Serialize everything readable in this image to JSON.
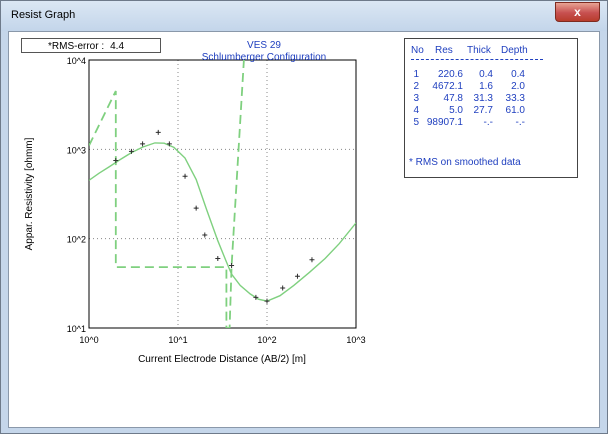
{
  "window": {
    "title": "Resist Graph",
    "close_glyph": "x"
  },
  "rms": {
    "label": "*RMS-error :",
    "value": "4.4"
  },
  "graph": {
    "title_line1": "VES 29",
    "title_line2": "Schlumberger Configuration"
  },
  "table": {
    "headers": [
      "No",
      "Res",
      "Thick",
      "Depth"
    ],
    "rows": [
      {
        "no": "1",
        "res": "220.6",
        "thick": "0.4",
        "depth": "0.4"
      },
      {
        "no": "2",
        "res": "4672.1",
        "thick": "1.6",
        "depth": "2.0"
      },
      {
        "no": "3",
        "res": "47.8",
        "thick": "31.3",
        "depth": "33.3"
      },
      {
        "no": "4",
        "res": "5.0",
        "thick": "27.7",
        "depth": "61.0"
      },
      {
        "no": "5",
        "res": "98907.1",
        "thick": "-.-",
        "depth": "-.-"
      }
    ],
    "note": "* RMS on smoothed data"
  },
  "colors": {
    "curve": "#7fd07f",
    "text_blue": "#1f3fbf",
    "observed": "#333333"
  },
  "chart_data": {
    "type": "line",
    "x_scale": "log",
    "y_scale": "log",
    "xlim": [
      1,
      1000
    ],
    "ylim": [
      10,
      10000
    ],
    "xlabel": "Current Electrode Distance (AB/2) [m]",
    "ylabel": "Appar. Resistivity [ohmm]",
    "x_ticks": [
      {
        "value": 1,
        "label": "10^0"
      },
      {
        "value": 10,
        "label": "10^1"
      },
      {
        "value": 100,
        "label": "10^2"
      },
      {
        "value": 1000,
        "label": "10^3"
      }
    ],
    "y_ticks": [
      {
        "value": 10,
        "label": "10^1"
      },
      {
        "value": 100,
        "label": "10^2"
      },
      {
        "value": 1000,
        "label": "10^3"
      },
      {
        "value": 10000,
        "label": "10^4"
      }
    ],
    "grid": true,
    "series": [
      {
        "style": "solid",
        "x": [
          1,
          1.3,
          1.7,
          2.2,
          3,
          4,
          5.5,
          7,
          9,
          12,
          16,
          21,
          28,
          35,
          40,
          50,
          65,
          80,
          100,
          140,
          200,
          300,
          450,
          650,
          1000
        ],
        "y": [
          450,
          540,
          640,
          760,
          920,
          1060,
          1180,
          1170,
          1050,
          800,
          460,
          210,
          95,
          55,
          40,
          30,
          24,
          21,
          20,
          23,
          30,
          42,
          60,
          88,
          150
        ]
      },
      {
        "style": "dashed",
        "x": [
          1,
          2,
          2,
          5,
          12,
          33,
          35,
          35,
          38,
          40,
          55,
          65
        ],
        "y": [
          1100,
          4500,
          48,
          48,
          48,
          48,
          48,
          10,
          10,
          50,
          10000,
          10000
        ]
      },
      {
        "style": "markers",
        "x": [
          2,
          3,
          4,
          6,
          8,
          12,
          16,
          20,
          28,
          40,
          75,
          100,
          150,
          220,
          320
        ],
        "y": [
          750,
          950,
          1150,
          1550,
          1150,
          500,
          220,
          110,
          60,
          50,
          22,
          20,
          28,
          38,
          58
        ]
      }
    ]
  }
}
